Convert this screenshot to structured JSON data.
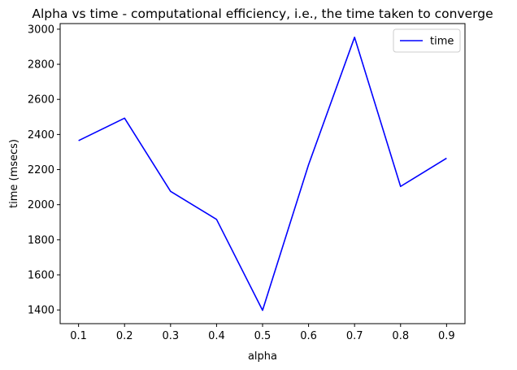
{
  "chart_data": {
    "type": "line",
    "title": "Alpha vs time - computational efficiency, i.e., the time taken to converge",
    "xlabel": "alpha",
    "ylabel": "time (msecs)",
    "x": [
      0.1,
      0.2,
      0.3,
      0.4,
      0.5,
      0.6,
      0.7,
      0.8,
      0.9
    ],
    "x_tick_labels": [
      "0.1",
      "0.2",
      "0.3",
      "0.4",
      "0.5",
      "0.6",
      "0.7",
      "0.8",
      "0.9"
    ],
    "y_ticks": [
      1400,
      1600,
      1800,
      2000,
      2200,
      2400,
      2600,
      2800,
      3000
    ],
    "y_tick_labels": [
      "1400",
      "1600",
      "1800",
      "2000",
      "2200",
      "2400",
      "2600",
      "2800",
      "3000"
    ],
    "xlim": [
      0.06,
      0.94
    ],
    "ylim": [
      1322,
      3032
    ],
    "grid": false,
    "legend_position": "top-right",
    "series": [
      {
        "name": "time",
        "color": "#0000ff",
        "values": [
          2365,
          2493,
          2076,
          1916,
          1398,
          2228,
          2954,
          2104,
          2265
        ]
      }
    ]
  }
}
